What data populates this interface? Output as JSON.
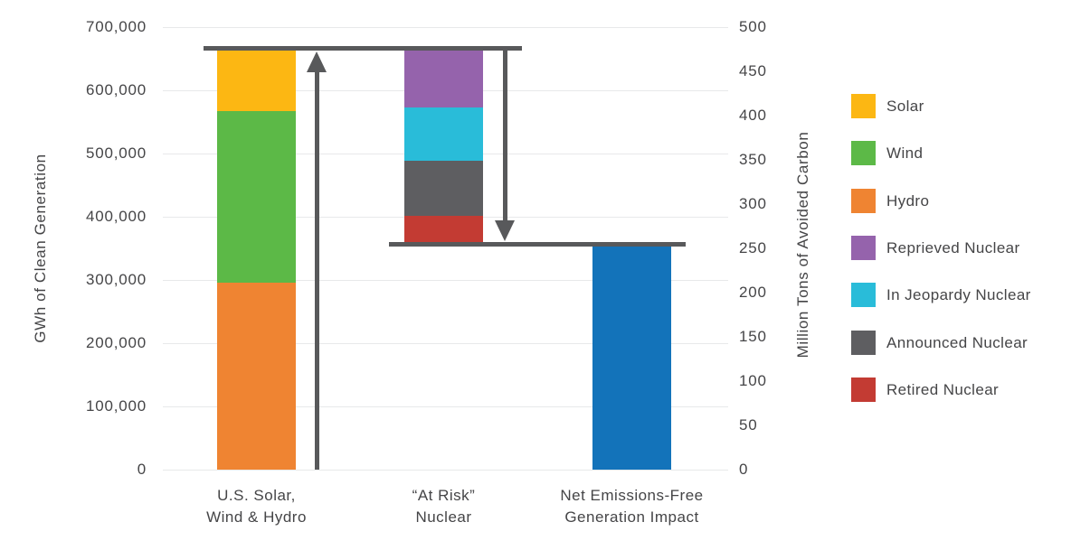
{
  "chart_data": {
    "type": "bar",
    "variant": "stacked-waterfall",
    "grid": true,
    "legend_position": "right",
    "left_axis": {
      "label": "GWh of Clean Generation",
      "min": 0,
      "max": 700000,
      "ticks": [
        {
          "value": 0,
          "label": "0"
        },
        {
          "value": 100000,
          "label": "100,000"
        },
        {
          "value": 200000,
          "label": "200,000"
        },
        {
          "value": 300000,
          "label": "300,000"
        },
        {
          "value": 400000,
          "label": "400,000"
        },
        {
          "value": 500000,
          "label": "500,000"
        },
        {
          "value": 600000,
          "label": "600,000"
        },
        {
          "value": 700000,
          "label": "700,000"
        }
      ]
    },
    "right_axis": {
      "label": "Million Tons of Avoided Carbon",
      "min": 0,
      "max": 500,
      "ticks": [
        {
          "value": 0,
          "label": "0"
        },
        {
          "value": 50,
          "label": "50"
        },
        {
          "value": 100,
          "label": "100"
        },
        {
          "value": 150,
          "label": "150"
        },
        {
          "value": 200,
          "label": "200"
        },
        {
          "value": 250,
          "label": "250"
        },
        {
          "value": 300,
          "label": "300"
        },
        {
          "value": 350,
          "label": "350"
        },
        {
          "value": 400,
          "label": "400"
        },
        {
          "value": 450,
          "label": "450"
        },
        {
          "value": 500,
          "label": "500"
        }
      ]
    },
    "bars": [
      {
        "category_lines": [
          "U.S. Solar,",
          "Wind & Hydro"
        ],
        "base": 0,
        "total": 666000,
        "segments": [
          {
            "name": "Hydro",
            "value": 296000,
            "color": "#EF8432"
          },
          {
            "name": "Wind",
            "value": 271000,
            "color": "#5CB947"
          },
          {
            "name": "Solar",
            "value": 99000,
            "color": "#FCB713"
          }
        ]
      },
      {
        "category_lines": [
          "“At Risk”",
          "Nuclear"
        ],
        "base": 356000,
        "total": 310000,
        "segments": [
          {
            "name": "Retired Nuclear",
            "value": 45000,
            "color": "#C33B33"
          },
          {
            "name": "Announced Nuclear",
            "value": 87000,
            "color": "#5E5E61"
          },
          {
            "name": "In Jeopardy Nuclear",
            "value": 85000,
            "color": "#29BCD9"
          },
          {
            "name": "Reprieved Nuclear",
            "value": 93000,
            "color": "#9563AC"
          }
        ]
      },
      {
        "category_lines": [
          "Net Emissions-Free",
          "Generation Impact"
        ],
        "base": 0,
        "total": 356000,
        "segments": [
          {
            "name": "Net Emissions-Free Generation",
            "value": 356000,
            "color": "#1373BA"
          }
        ]
      }
    ],
    "reference_lines": [
      {
        "value": 666000
      },
      {
        "value": 356000
      }
    ],
    "arrows": [
      {
        "direction": "up",
        "from_value": 0,
        "to_value": 666000
      },
      {
        "direction": "down",
        "from_value": 666000,
        "to_value": 356000
      }
    ],
    "legend": [
      {
        "label": "Solar",
        "color": "#FCB713"
      },
      {
        "label": "Wind",
        "color": "#5CB947"
      },
      {
        "label": "Hydro",
        "color": "#EF8432"
      },
      {
        "label": "Reprieved Nuclear",
        "color": "#9563AC"
      },
      {
        "label": "In Jeopardy Nuclear",
        "color": "#29BCD9"
      },
      {
        "label": "Announced Nuclear",
        "color": "#5E5E61"
      },
      {
        "label": "Retired Nuclear",
        "color": "#C33B33"
      }
    ],
    "colors": {
      "reference_line": "#58595B",
      "gridline": "#E8E9EA",
      "text": "#454547"
    }
  }
}
